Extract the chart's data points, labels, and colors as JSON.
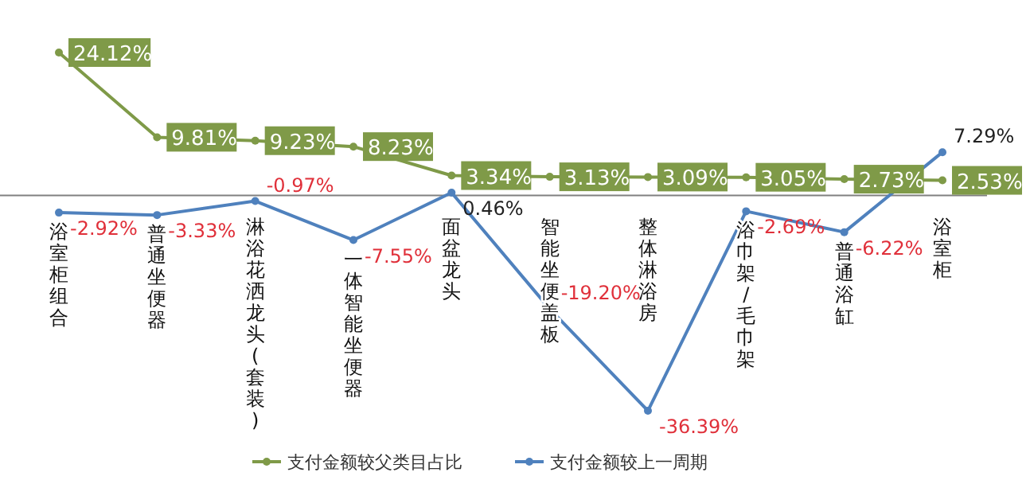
{
  "chart_data": {
    "type": "line",
    "categories": [
      "浴室柜组合",
      "普通坐便器",
      "淋浴花洒龙头(套装)",
      "一体智能坐便器",
      "面盆龙头",
      "智能坐便盖板",
      "整体淋浴房",
      "浴巾架/毛巾架",
      "普通浴缸",
      "浴室柜"
    ],
    "series": [
      {
        "name": "支付金额较父类目占比",
        "color": "#7f9a48",
        "values": [
          24.12,
          9.81,
          9.23,
          8.23,
          3.34,
          3.13,
          3.09,
          3.05,
          2.73,
          2.53
        ],
        "value_labels": [
          "24.12%",
          "9.81%",
          "9.23%",
          "8.23%",
          "3.34%",
          "3.13%",
          "3.09%",
          "3.05%",
          "2.73%",
          "2.53%"
        ]
      },
      {
        "name": "支付金额较上一周期",
        "color": "#4f81bd",
        "values": [
          -2.92,
          -3.33,
          -0.97,
          -7.55,
          0.46,
          -19.2,
          -36.39,
          -2.69,
          -6.22,
          7.29
        ],
        "value_labels": [
          "-2.92%",
          "-3.33%",
          "-0.97%",
          "-7.55%",
          "0.46%",
          "-19.20%",
          "-36.39%",
          "-2.69%",
          "-6.22%",
          "7.29%"
        ]
      }
    ],
    "legend": "bottom",
    "marker": "circle"
  }
}
